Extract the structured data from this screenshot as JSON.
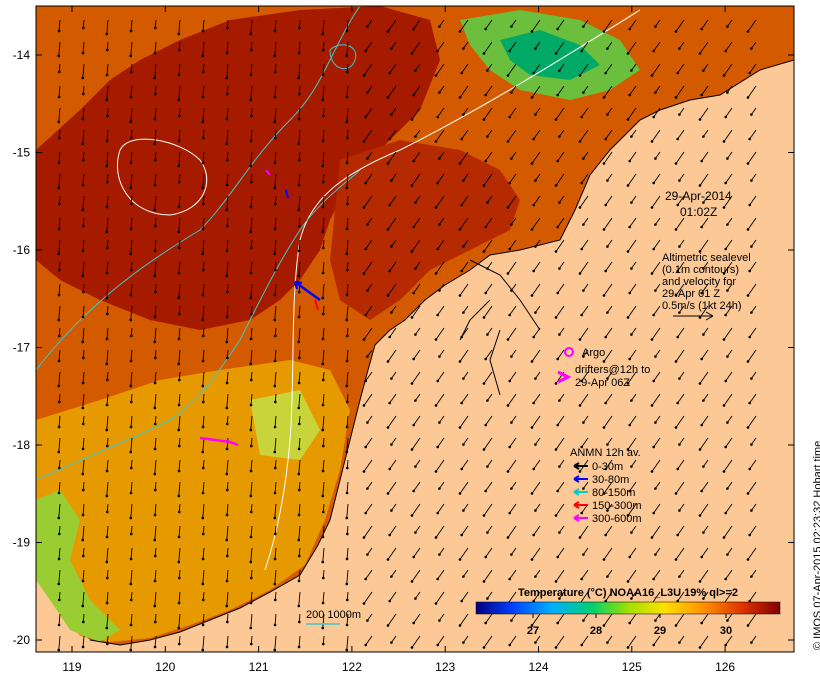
{
  "map": {
    "date_line1": "29-Apr-2014",
    "date_line2": "01:02Z",
    "velocity_note": [
      "Altimetric sealevel",
      "(0.1m contours)",
      "and velocity for",
      "29-Apr 01 Z",
      "0.5m/s (1kt 24h)"
    ],
    "argo_label": "Argo",
    "drifters_label": [
      "drifters@12h to",
      "29-Apr 06Z"
    ],
    "anmn_title": "ANMN 12h av.",
    "anmn_items": [
      {
        "label": "0-30m",
        "color": "#000000"
      },
      {
        "label": "30-80m",
        "color": "#0000ff"
      },
      {
        "label": "80-150m",
        "color": "#00cccc"
      },
      {
        "label": "150-300m",
        "color": "#ff0000"
      },
      {
        "label": "300-600m",
        "color": "#ff00ff"
      }
    ],
    "bathy_label": "200  1000m",
    "colorbar_title": "Temperature (°C) NOAA16_L3U 19% ql>=2",
    "colorbar_ticks": [
      "27",
      "28",
      "29",
      "30"
    ],
    "lon_labels": [
      "119",
      "120",
      "121",
      "122",
      "123",
      "124",
      "125",
      "126"
    ],
    "lat_labels": [
      "-14",
      "-15",
      "-16",
      "-17",
      "-18",
      "-19",
      "-20"
    ],
    "credit": "© IMOS 07-Apr-2015 02:23:32 Hobart time",
    "colors": {
      "land": "#fbc896",
      "sst_hot": "#a61a00",
      "sst_warm": "#d45a00",
      "sst_mid": "#e69a00",
      "sst_cool": "#9acd32",
      "sst_cold": "#00aa66",
      "altimetry_contour": "#ffffff",
      "bathy_contour": "#40c8c8"
    }
  }
}
